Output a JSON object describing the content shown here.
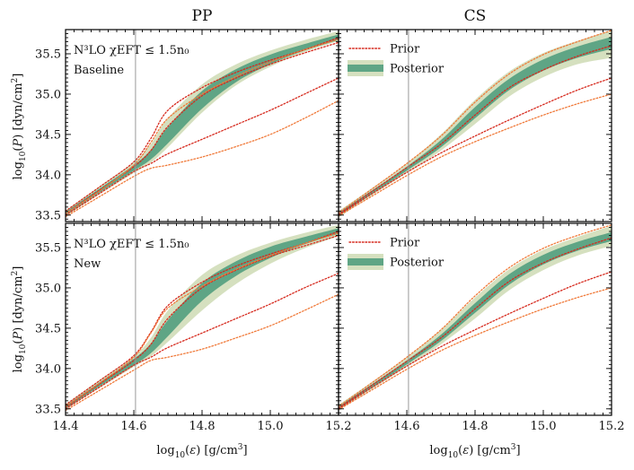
{
  "chart_data": {
    "type": "line",
    "layout": "2x2 grid of panels, shared axes",
    "column_titles": [
      "PP",
      "CS"
    ],
    "xlabel": "log10(ε) [g/cm³]",
    "ylabel": "log10(P) [dyn/cm²]",
    "xlim": [
      14.4,
      15.2
    ],
    "ylim": [
      33.42,
      35.8
    ],
    "x_ticks": [
      "14.4",
      "14.6",
      "14.8",
      "15.0",
      "15.2"
    ],
    "x_tick_values": [
      14.4,
      14.6,
      14.8,
      15.0,
      15.2
    ],
    "y_ticks": [
      "33.5",
      "34.0",
      "34.5",
      "35.0",
      "35.5"
    ],
    "y_tick_values": [
      33.5,
      34.0,
      34.5,
      35.0,
      35.5
    ],
    "reference_line_x": 14.605,
    "legend": {
      "placement": "top-left of right-column panels",
      "entries": [
        {
          "name": "Prior",
          "style": "dotted red line"
        },
        {
          "name": "Posterior",
          "style": "green band"
        }
      ]
    },
    "annotations": {
      "title_line": "N³LO χEFT ≤ 1.5n₀",
      "rows": [
        "Baseline",
        "New"
      ]
    },
    "colors": {
      "prior_dark": "#d62a1e",
      "prior_light": "#f07a3a",
      "posterior_inner": "#5fa585",
      "posterior_outer": "#d5e0bf",
      "reference_line": "#9a9a9a"
    },
    "panels": [
      {
        "row": "Baseline",
        "column": "PP",
        "posterior_outer": {
          "x": [
            14.4,
            14.5,
            14.6,
            14.65,
            14.7,
            14.8,
            14.9,
            15.0,
            15.1,
            15.2
          ],
          "lower": [
            33.48,
            33.76,
            34.02,
            34.15,
            34.34,
            34.77,
            35.11,
            35.34,
            35.52,
            35.66
          ],
          "upper": [
            33.56,
            33.86,
            34.16,
            34.38,
            34.7,
            35.12,
            35.37,
            35.54,
            35.67,
            35.78
          ]
        },
        "posterior_inner": {
          "x": [
            14.4,
            14.5,
            14.6,
            14.65,
            14.7,
            14.8,
            14.9,
            15.0,
            15.1,
            15.2
          ],
          "lower": [
            33.5,
            33.78,
            34.05,
            34.19,
            34.39,
            34.82,
            35.15,
            35.37,
            35.54,
            35.67
          ],
          "upper": [
            33.54,
            33.83,
            34.12,
            34.31,
            34.59,
            35.04,
            35.31,
            35.49,
            35.62,
            35.74
          ]
        },
        "prior_lines": [
          {
            "tone": "prior_dark",
            "x": [
              14.4,
              14.5,
              14.6,
              14.65,
              14.7,
              14.8,
              14.9,
              15.0,
              15.1,
              15.2
            ],
            "y": [
              33.55,
              33.85,
              34.16,
              34.45,
              34.8,
              35.08,
              35.27,
              35.42,
              35.55,
              35.7
            ]
          },
          {
            "tone": "prior_dark",
            "x": [
              14.4,
              14.5,
              14.6,
              14.65,
              14.7,
              14.8,
              14.9,
              15.0,
              15.1,
              15.2
            ],
            "y": [
              33.52,
              33.81,
              34.1,
              34.3,
              34.6,
              34.98,
              35.2,
              35.37,
              35.51,
              35.64
            ]
          },
          {
            "tone": "prior_dark",
            "x": [
              14.4,
              14.5,
              14.6,
              14.65,
              14.7,
              14.8,
              14.9,
              15.0,
              15.1,
              15.2
            ],
            "y": [
              33.5,
              33.77,
              34.04,
              34.14,
              34.26,
              34.44,
              34.62,
              34.8,
              35.0,
              35.2
            ]
          },
          {
            "tone": "prior_light",
            "x": [
              14.4,
              14.5,
              14.6,
              14.65,
              14.7,
              14.8,
              14.9,
              15.0,
              15.1,
              15.2
            ],
            "y": [
              33.52,
              33.8,
              34.12,
              34.4,
              34.7,
              35.0,
              35.22,
              35.4,
              35.55,
              35.68
            ]
          },
          {
            "tone": "prior_light",
            "x": [
              14.4,
              14.5,
              14.6,
              14.65,
              14.7,
              14.8,
              14.9,
              15.0,
              15.1,
              15.2
            ],
            "y": [
              33.48,
              33.73,
              33.98,
              34.08,
              34.12,
              34.22,
              34.35,
              34.5,
              34.7,
              34.92
            ]
          }
        ]
      },
      {
        "row": "Baseline",
        "column": "CS",
        "posterior_outer": {
          "x": [
            14.4,
            14.5,
            14.6,
            14.7,
            14.8,
            14.9,
            15.0,
            15.1,
            15.2
          ],
          "lower": [
            33.47,
            33.75,
            34.02,
            34.3,
            34.63,
            34.97,
            35.21,
            35.37,
            35.45
          ],
          "upper": [
            33.55,
            33.84,
            34.14,
            34.5,
            34.93,
            35.28,
            35.51,
            35.66,
            35.79
          ]
        },
        "posterior_inner": {
          "x": [
            14.4,
            14.5,
            14.6,
            14.7,
            14.8,
            14.9,
            15.0,
            15.1,
            15.2
          ],
          "lower": [
            33.49,
            33.77,
            34.05,
            34.34,
            34.7,
            35.05,
            35.29,
            35.45,
            35.56
          ],
          "upper": [
            33.53,
            33.81,
            34.1,
            34.43,
            34.84,
            35.19,
            35.43,
            35.59,
            35.71
          ]
        },
        "prior_lines": [
          {
            "tone": "prior_dark",
            "x": [
              14.4,
              14.5,
              14.6,
              14.7,
              14.8,
              14.9,
              15.0,
              15.1,
              15.2
            ],
            "y": [
              33.51,
              33.8,
              34.09,
              34.38,
              34.74,
              35.08,
              35.3,
              35.47,
              35.6
            ]
          },
          {
            "tone": "prior_dark",
            "x": [
              14.4,
              14.5,
              14.6,
              14.7,
              14.8,
              14.9,
              15.0,
              15.1,
              15.2
            ],
            "y": [
              33.5,
              33.77,
              34.03,
              34.27,
              34.48,
              34.68,
              34.87,
              35.05,
              35.2
            ]
          },
          {
            "tone": "prior_light",
            "x": [
              14.4,
              14.5,
              14.6,
              14.7,
              14.8,
              14.9,
              15.0,
              15.1,
              15.2
            ],
            "y": [
              33.53,
              33.83,
              34.14,
              34.48,
              34.9,
              35.25,
              35.49,
              35.65,
              35.79
            ]
          },
          {
            "tone": "prior_light",
            "x": [
              14.4,
              14.5,
              14.6,
              14.7,
              14.8,
              14.9,
              15.0,
              15.1,
              15.2
            ],
            "y": [
              33.49,
              33.74,
              33.99,
              34.22,
              34.41,
              34.58,
              34.74,
              34.88,
              35.0
            ]
          }
        ]
      },
      {
        "row": "New",
        "column": "PP",
        "posterior_outer": {
          "x": [
            14.4,
            14.5,
            14.6,
            14.65,
            14.7,
            14.8,
            14.9,
            15.0,
            15.1,
            15.2
          ],
          "lower": [
            33.49,
            33.76,
            34.02,
            34.15,
            34.33,
            34.72,
            35.05,
            35.3,
            35.49,
            35.64
          ],
          "upper": [
            33.56,
            33.86,
            34.15,
            34.38,
            34.72,
            35.16,
            35.4,
            35.56,
            35.68,
            35.78
          ]
        },
        "posterior_inner": {
          "x": [
            14.4,
            14.5,
            14.6,
            14.65,
            14.7,
            14.8,
            14.9,
            15.0,
            15.1,
            15.2
          ],
          "lower": [
            33.5,
            33.78,
            34.04,
            34.19,
            34.4,
            34.84,
            35.15,
            35.37,
            35.54,
            35.67
          ],
          "upper": [
            33.54,
            33.83,
            34.12,
            34.31,
            34.6,
            35.06,
            35.33,
            35.51,
            35.63,
            35.74
          ]
        },
        "prior_lines": [
          {
            "tone": "prior_dark",
            "x": [
              14.4,
              14.5,
              14.6,
              14.65,
              14.7,
              14.8,
              14.9,
              15.0,
              15.1,
              15.2
            ],
            "y": [
              33.55,
              33.85,
              34.16,
              34.45,
              34.78,
              35.07,
              35.27,
              35.42,
              35.55,
              35.7
            ]
          },
          {
            "tone": "prior_dark",
            "x": [
              14.4,
              14.5,
              14.6,
              14.65,
              14.7,
              14.8,
              14.9,
              15.0,
              15.1,
              15.2
            ],
            "y": [
              33.52,
              33.81,
              34.1,
              34.3,
              34.62,
              35.0,
              35.22,
              35.39,
              35.52,
              35.65
            ]
          },
          {
            "tone": "prior_dark",
            "x": [
              14.4,
              14.5,
              14.6,
              14.65,
              14.7,
              14.8,
              14.9,
              15.0,
              15.1,
              15.2
            ],
            "y": [
              33.5,
              33.77,
              34.04,
              34.14,
              34.26,
              34.44,
              34.62,
              34.8,
              35.0,
              35.18
            ]
          },
          {
            "tone": "prior_light",
            "x": [
              14.4,
              14.5,
              14.6,
              14.65,
              14.7,
              14.8,
              14.9,
              15.0,
              15.1,
              15.2
            ],
            "y": [
              33.53,
              33.82,
              34.14,
              34.44,
              34.75,
              35.02,
              35.23,
              35.4,
              35.55,
              35.68
            ]
          },
          {
            "tone": "prior_light",
            "x": [
              14.4,
              14.5,
              14.6,
              14.65,
              14.7,
              14.8,
              14.9,
              15.0,
              15.1,
              15.2
            ],
            "y": [
              33.48,
              33.73,
              33.98,
              34.1,
              34.14,
              34.24,
              34.38,
              34.53,
              34.72,
              34.92
            ]
          }
        ]
      },
      {
        "row": "New",
        "column": "CS",
        "posterior_outer": {
          "x": [
            14.4,
            14.5,
            14.6,
            14.7,
            14.8,
            14.9,
            15.0,
            15.1,
            15.2
          ],
          "lower": [
            33.48,
            33.75,
            34.02,
            34.3,
            34.62,
            34.97,
            35.22,
            35.4,
            35.52
          ],
          "upper": [
            33.55,
            33.84,
            34.14,
            34.48,
            34.88,
            35.23,
            35.47,
            35.63,
            35.77
          ]
        },
        "posterior_inner": {
          "x": [
            14.4,
            14.5,
            14.6,
            14.7,
            14.8,
            14.9,
            15.0,
            15.1,
            15.2
          ],
          "lower": [
            33.5,
            33.77,
            34.05,
            34.34,
            34.69,
            35.04,
            35.29,
            35.46,
            35.58
          ],
          "upper": [
            33.53,
            33.81,
            34.1,
            34.42,
            34.81,
            35.17,
            35.41,
            35.57,
            35.69
          ]
        },
        "prior_lines": [
          {
            "tone": "prior_dark",
            "x": [
              14.4,
              14.5,
              14.6,
              14.7,
              14.8,
              14.9,
              15.0,
              15.1,
              15.2
            ],
            "y": [
              33.51,
              33.8,
              34.09,
              34.38,
              34.74,
              35.08,
              35.31,
              35.48,
              35.62
            ]
          },
          {
            "tone": "prior_dark",
            "x": [
              14.4,
              14.5,
              14.6,
              14.7,
              14.8,
              14.9,
              15.0,
              15.1,
              15.2
            ],
            "y": [
              33.5,
              33.77,
              34.03,
              34.27,
              34.48,
              34.68,
              34.87,
              35.05,
              35.2
            ]
          },
          {
            "tone": "prior_light",
            "x": [
              14.4,
              14.5,
              14.6,
              14.7,
              14.8,
              14.9,
              15.0,
              15.1,
              15.2
            ],
            "y": [
              33.53,
              33.83,
              34.14,
              34.48,
              34.9,
              35.25,
              35.49,
              35.65,
              35.78
            ]
          },
          {
            "tone": "prior_light",
            "x": [
              14.4,
              14.5,
              14.6,
              14.7,
              14.8,
              14.9,
              15.0,
              15.1,
              15.2
            ],
            "y": [
              33.49,
              33.74,
              33.99,
              34.22,
              34.41,
              34.58,
              34.74,
              34.88,
              35.0
            ]
          }
        ]
      }
    ]
  }
}
